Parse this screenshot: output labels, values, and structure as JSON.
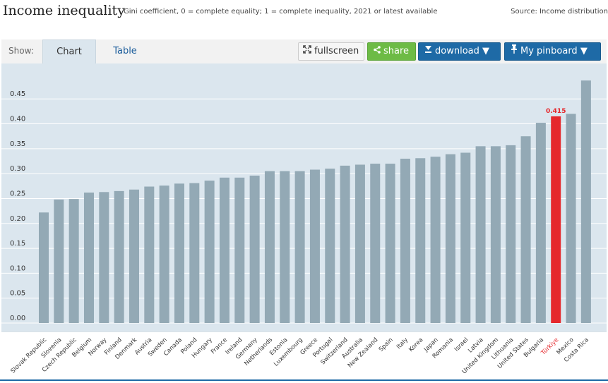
{
  "header": {
    "title": "Income inequality",
    "subtitle": "Gini coefficient, 0 = complete equality; 1 = complete inequality, 2021 or latest available",
    "source": "Source: Income distribution"
  },
  "toolbar": {
    "show_label": "Show:",
    "tabs": [
      {
        "label": "Chart",
        "active": true
      },
      {
        "label": "Table",
        "active": false
      }
    ],
    "fullscreen_label": "fullscreen",
    "share_label": "share",
    "download_label": "download ▼",
    "pinboard_label": "My pinboard ▼"
  },
  "colors": {
    "bar": "#93a9b5",
    "highlight": "#e5282c",
    "plot_bg": "#dbe6ee",
    "accent_blue": "#1e6aa6",
    "share_green": "#6dbb45"
  },
  "chart_data": {
    "type": "bar",
    "title": "Income inequality",
    "ylim": [
      0,
      0.49
    ],
    "yticks": [
      "0.00",
      "0.05",
      "0.10",
      "0.15",
      "0.20",
      "0.25",
      "0.30",
      "0.35",
      "0.40",
      "0.45"
    ],
    "grid": true,
    "categories": [
      "Slovak Republic",
      "Slovenia",
      "Czech Republic",
      "Belgium",
      "Norway",
      "Finland",
      "Denmark",
      "Austria",
      "Sweden",
      "Canada",
      "Poland",
      "Hungary",
      "France",
      "Ireland",
      "Germany",
      "Netherlands",
      "Estonia",
      "Luxembourg",
      "Greece",
      "Portugal",
      "Switzerland",
      "Australia",
      "New Zealand",
      "Spain",
      "Italy",
      "Korea",
      "Japan",
      "Romania",
      "Israel",
      "Latvia",
      "United Kingdom",
      "Lithuania",
      "United States",
      "Bulgaria",
      "Türkiye",
      "Mexico",
      "Costa Rica"
    ],
    "values": [
      0.222,
      0.248,
      0.249,
      0.262,
      0.263,
      0.265,
      0.268,
      0.274,
      0.276,
      0.28,
      0.281,
      0.286,
      0.292,
      0.292,
      0.296,
      0.305,
      0.305,
      0.305,
      0.308,
      0.31,
      0.316,
      0.318,
      0.32,
      0.32,
      0.33,
      0.331,
      0.334,
      0.339,
      0.342,
      0.355,
      0.355,
      0.357,
      0.375,
      0.402,
      0.415,
      0.42,
      0.487
    ],
    "highlight": "Türkiye",
    "highlight_label": "0.415"
  }
}
